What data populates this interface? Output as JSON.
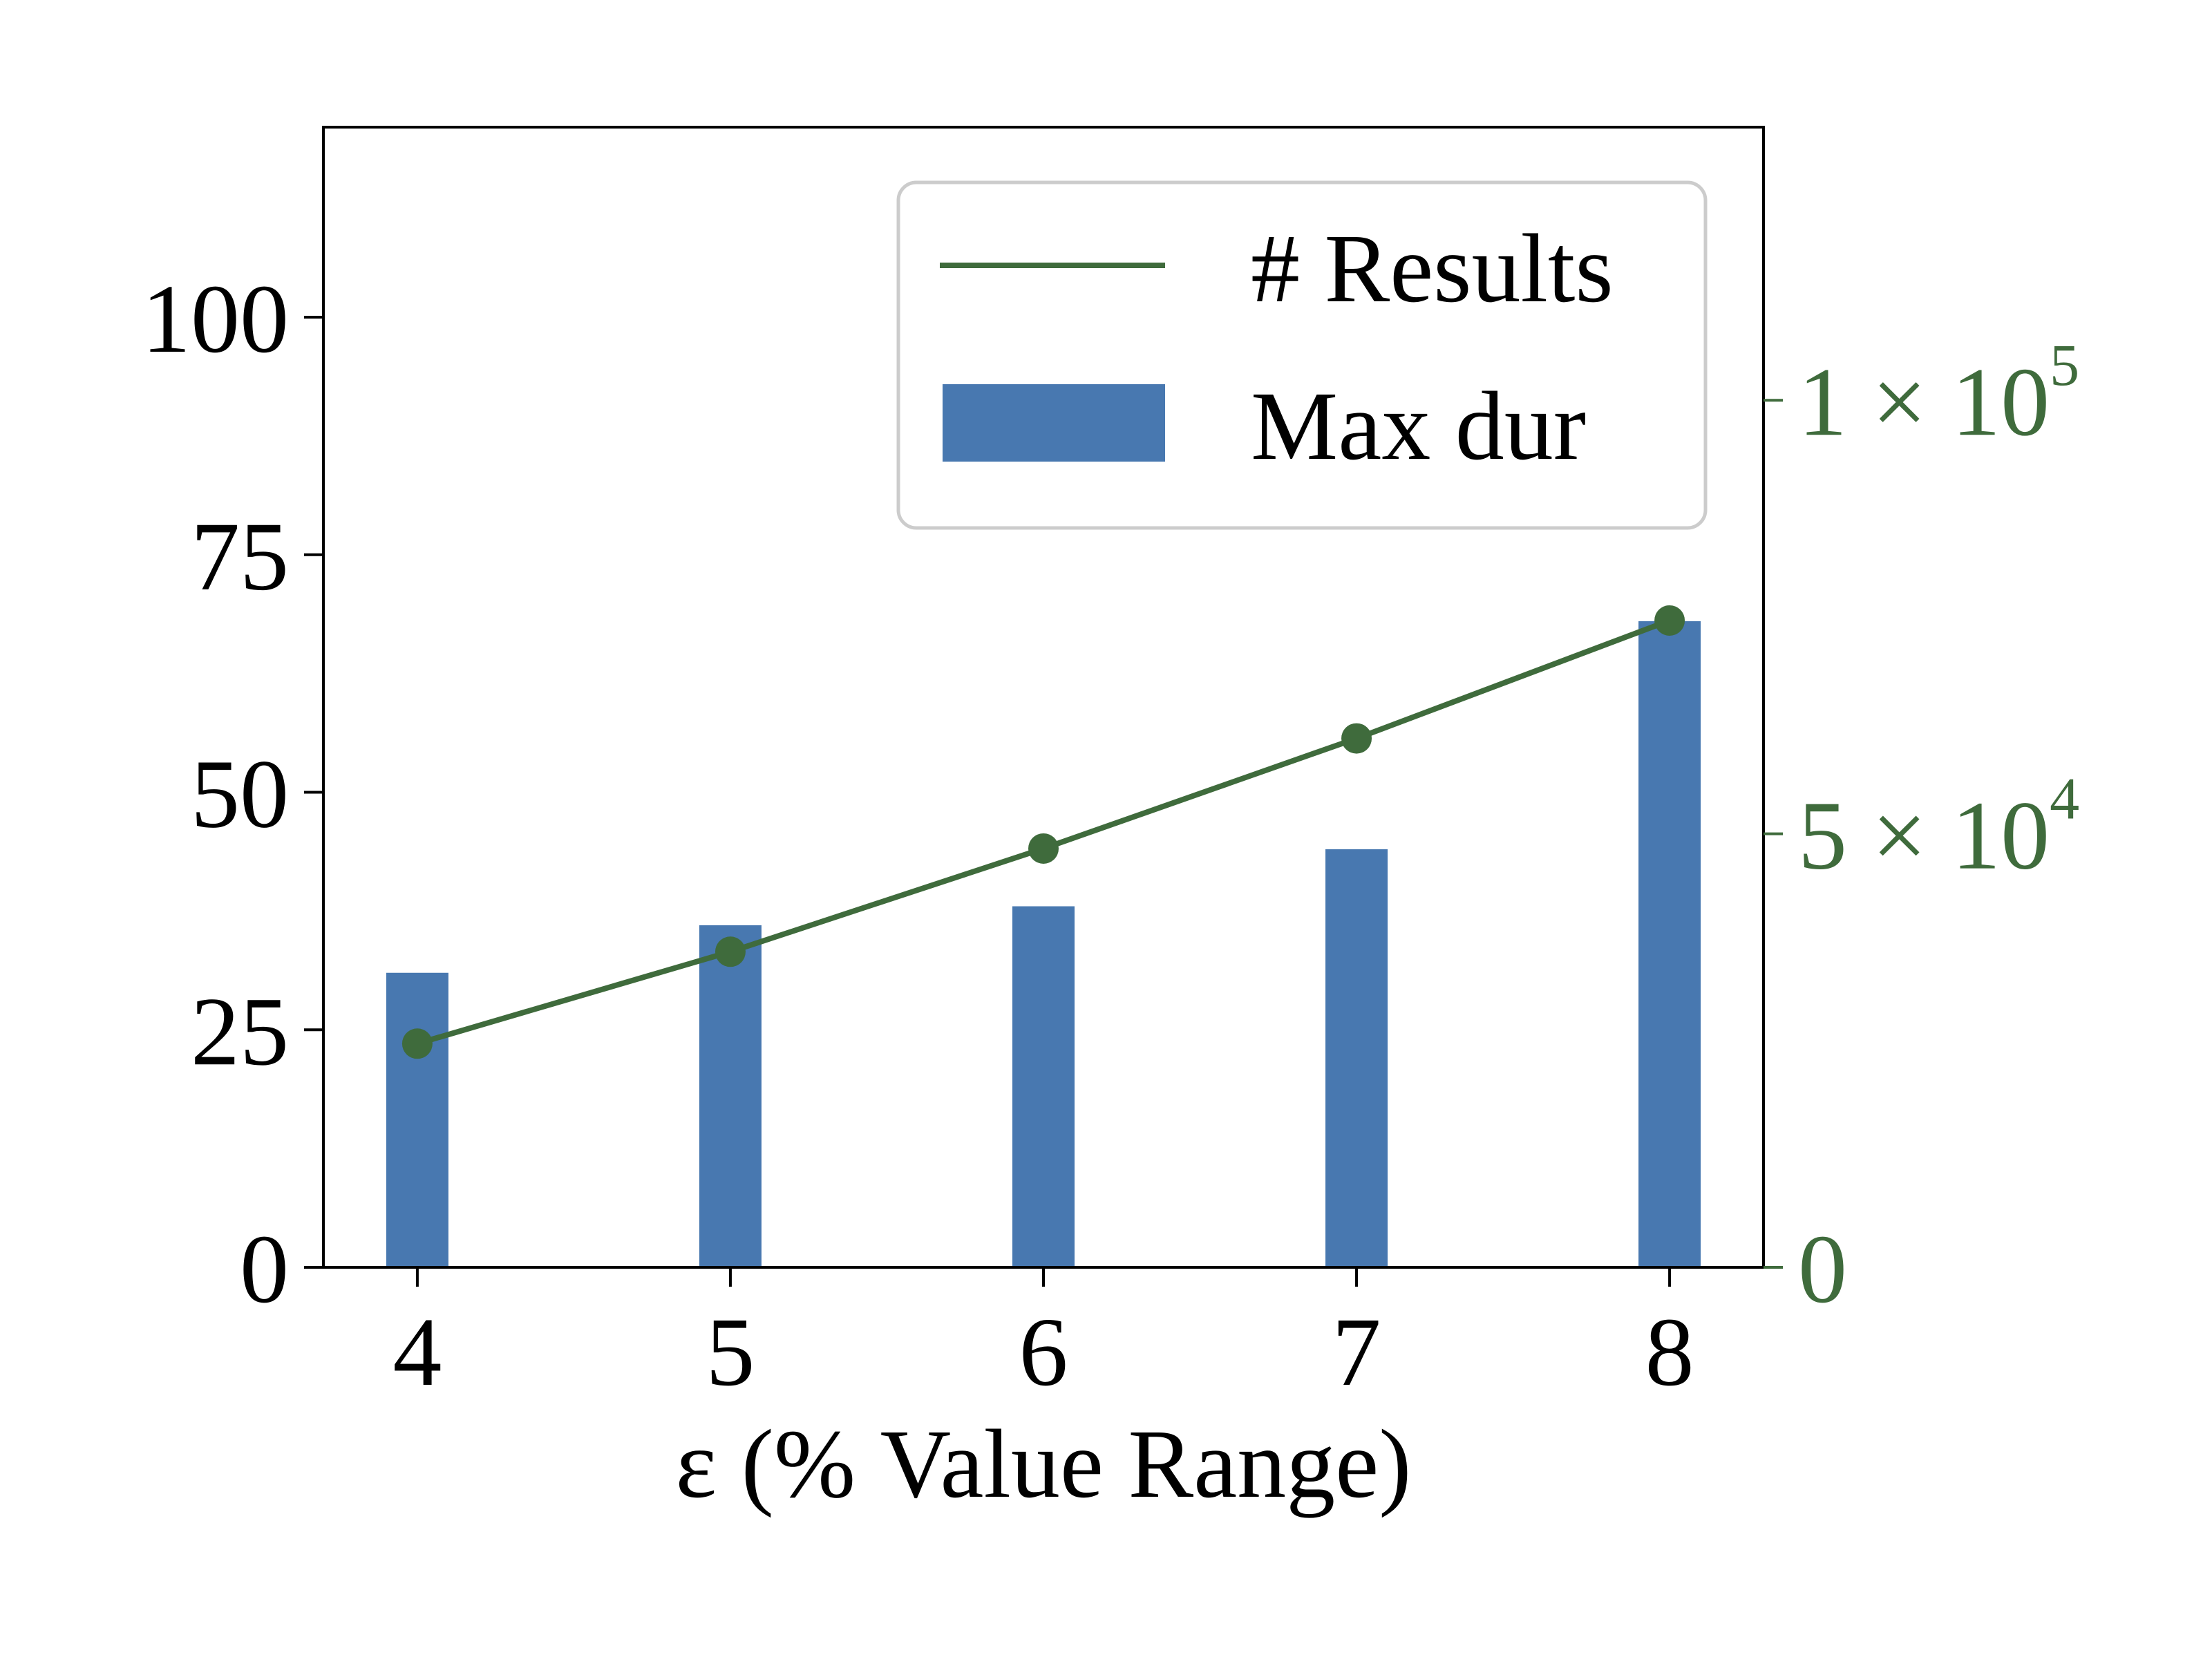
{
  "chart_data": {
    "type": "bar+line",
    "title": "",
    "xlabel": "ε (% Value Range)",
    "x": [
      4,
      5,
      6,
      7,
      8
    ],
    "x_tick_labels": [
      "4",
      "5",
      "6",
      "7",
      "8"
    ],
    "left_axis": {
      "ylim": [
        0,
        120
      ],
      "ticks": [
        0,
        25,
        50,
        75,
        100
      ],
      "tick_labels": [
        "0",
        "25",
        "50",
        "75",
        "100"
      ]
    },
    "right_axis": {
      "ylim": [
        0,
        131500
      ],
      "ticks": [
        0,
        50000,
        100000
      ],
      "tick_labels": [
        {
          "mantissa": "0",
          "times": "",
          "base": "",
          "exp": ""
        },
        {
          "mantissa": "5",
          "times": "×",
          "base": "10",
          "exp": "4"
        },
        {
          "mantissa": "1",
          "times": "×",
          "base": "10",
          "exp": "5"
        }
      ],
      "color": "#3f6b3c"
    },
    "series": [
      {
        "name": "Max dur",
        "kind": "bar",
        "axis": "left",
        "values": [
          31,
          36,
          38,
          44,
          68
        ],
        "color": "#4878b0"
      },
      {
        "name": "# Results",
        "kind": "line",
        "axis": "right",
        "values": [
          25800,
          36400,
          48300,
          61000,
          74600
        ],
        "color": "#3f6b3c"
      }
    ],
    "legend": {
      "placement": "upper-right",
      "entries": [
        "# Results",
        "Max dur"
      ]
    },
    "grid": false
  }
}
